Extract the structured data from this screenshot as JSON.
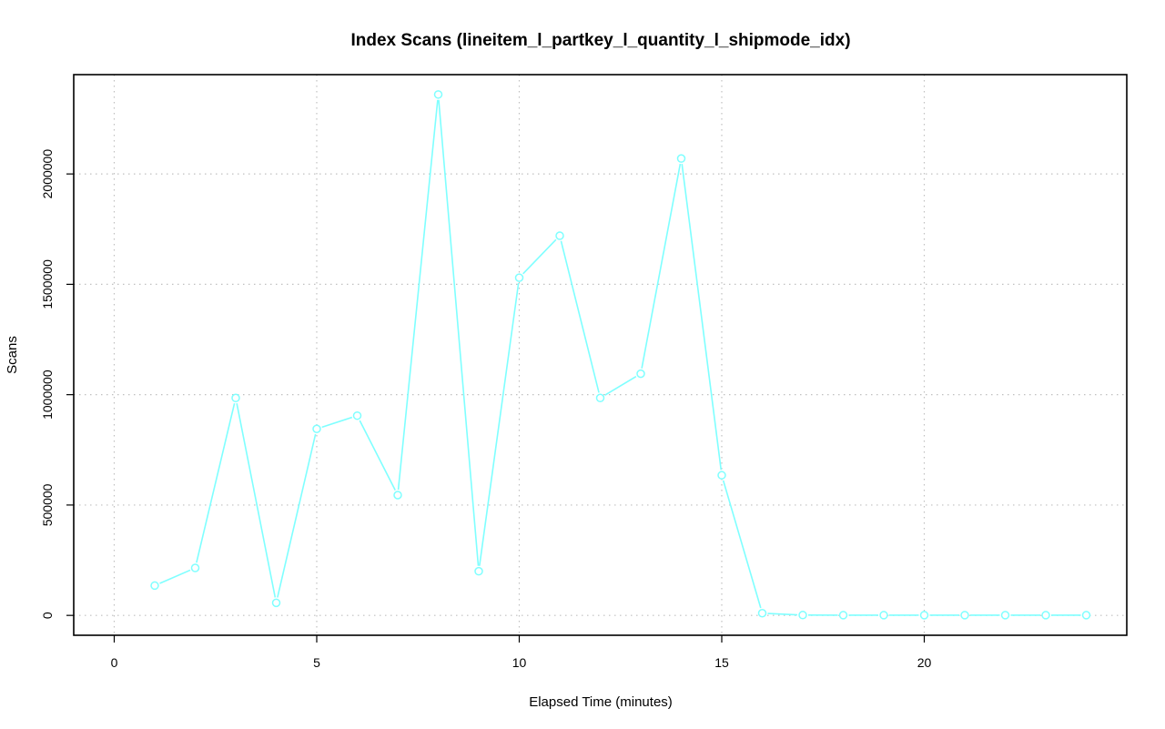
{
  "chart_data": {
    "type": "line",
    "title": "Index Scans (lineitem_l_partkey_l_quantity_l_shipmode_idx)",
    "xlabel": "Elapsed Time (minutes)",
    "ylabel": "Scans",
    "xlim": [
      -1,
      25
    ],
    "ylim": [
      -90000,
      2450000
    ],
    "x_ticks": [
      0,
      5,
      10,
      15,
      20
    ],
    "y_ticks": [
      0,
      500000,
      1000000,
      1500000,
      2000000
    ],
    "x_tick_labels": [
      "0",
      "5",
      "10",
      "15",
      "20"
    ],
    "y_tick_labels": [
      "0",
      "500000",
      "1000000",
      "1500000",
      "2000000"
    ],
    "grid": true,
    "series": [
      {
        "color": "#7fffff",
        "x": [
          1,
          2,
          3,
          4,
          5,
          6,
          7,
          8,
          9,
          10,
          11,
          12,
          13,
          14,
          15,
          16,
          17,
          18,
          19,
          20,
          21,
          22,
          23,
          24
        ],
        "y": [
          135000,
          215000,
          985000,
          57000,
          845000,
          905000,
          545000,
          2360000,
          200000,
          1530000,
          1720000,
          985000,
          1095000,
          2070000,
          635000,
          10000,
          1500,
          1000,
          1000,
          1000,
          1000,
          1000,
          1000,
          1000
        ]
      }
    ]
  }
}
